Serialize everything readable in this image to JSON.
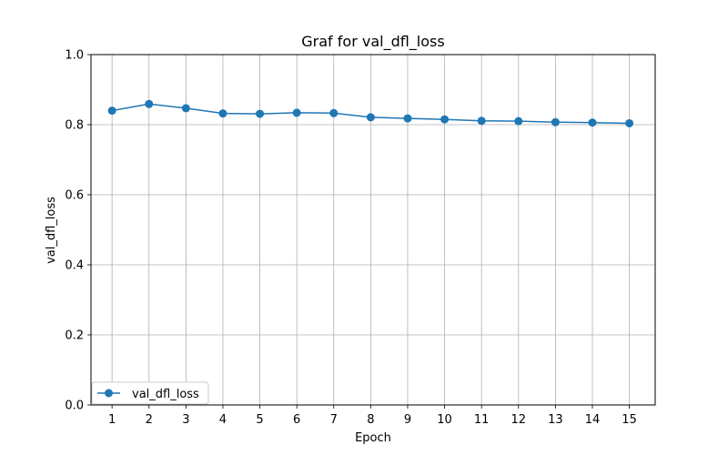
{
  "chart_data": {
    "type": "line",
    "title": "Graf for val_dfl_loss",
    "xlabel": "Epoch",
    "ylabel": "val_dfl_loss",
    "x": [
      1,
      2,
      3,
      4,
      5,
      6,
      7,
      8,
      9,
      10,
      11,
      12,
      13,
      14,
      15
    ],
    "x_ticks": [
      "1",
      "2",
      "3",
      "4",
      "5",
      "6",
      "7",
      "8",
      "9",
      "10",
      "11",
      "12",
      "13",
      "14",
      "15"
    ],
    "y_ticks": [
      "0.0",
      "0.2",
      "0.4",
      "0.6",
      "0.8",
      "1.0"
    ],
    "xlim": [
      0.43,
      15.7
    ],
    "ylim": [
      0.0,
      1.0
    ],
    "grid": true,
    "legend_position": "lower-left",
    "series": [
      {
        "name": "val_dfl_loss",
        "color": "#1f77b4",
        "marker": "circle",
        "values": [
          0.84,
          0.859,
          0.847,
          0.832,
          0.831,
          0.834,
          0.833,
          0.821,
          0.818,
          0.815,
          0.811,
          0.81,
          0.807,
          0.806,
          0.804
        ]
      }
    ]
  }
}
